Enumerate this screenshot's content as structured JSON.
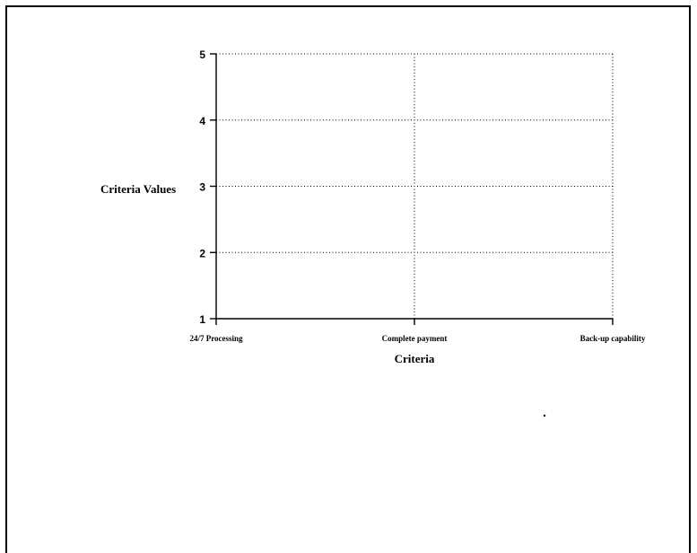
{
  "chart_data": {
    "type": "line",
    "title": "",
    "xlabel": "Criteria",
    "ylabel": "Criteria Values",
    "categories": [
      "24/7 Processing",
      "Complete payment",
      "Back-up capability"
    ],
    "series": [],
    "ylim": [
      1,
      5
    ],
    "yticks": [
      "1",
      "2",
      "3",
      "4",
      "5"
    ],
    "grid": true
  }
}
